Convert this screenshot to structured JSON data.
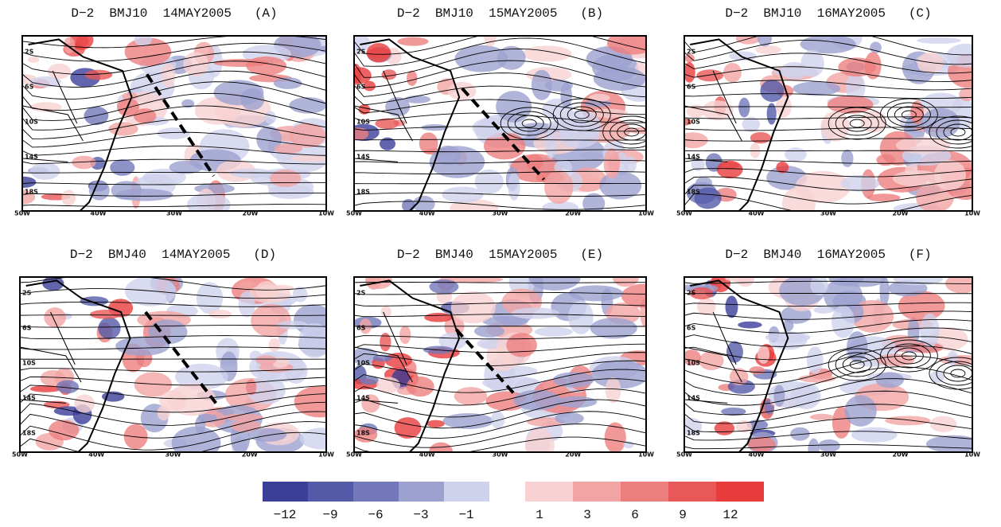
{
  "panels": [
    {
      "title": "D−2  BMJ10  14MAY2005   (A)"
    },
    {
      "title": "D−2  BMJ10  15MAY2005   (B)"
    },
    {
      "title": "D−2  BMJ10  16MAY2005   (C)"
    },
    {
      "title": "D−2  BMJ40  14MAY2005   (D)"
    },
    {
      "title": "D−2  BMJ40  15MAY2005   (E)"
    },
    {
      "title": "D−2  BMJ40  16MAY2005   (F)"
    }
  ],
  "axis": {
    "lat_labels": [
      "2S",
      "6S",
      "10S",
      "14S",
      "18S"
    ],
    "lon_labels": [
      "50W",
      "40W",
      "30W",
      "20W",
      "10W"
    ]
  },
  "colorbar": {
    "labels": [
      "−12",
      "−9",
      "−6",
      "−3",
      "−1",
      "1",
      "3",
      "6",
      "9",
      "12"
    ],
    "colors": [
      "#3b3f98",
      "#545aa8",
      "#7278b9",
      "#9ca1d0",
      "#cfd2ec",
      "#f8d2d2",
      "#f2a4a4",
      "#ed7e7e",
      "#e95858",
      "#e83b3b"
    ]
  }
}
